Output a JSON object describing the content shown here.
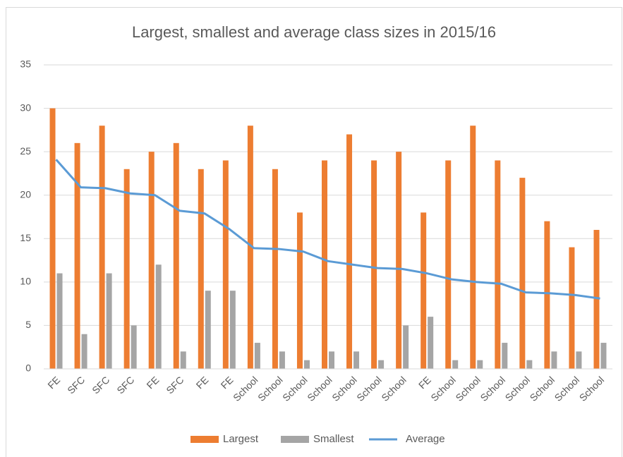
{
  "chart_data": {
    "type": "bar_line",
    "title": "Largest, smallest and average class sizes in 2015/16",
    "categories": [
      "FE",
      "SFC",
      "SFC",
      "SFC",
      "FE",
      "SFC",
      "FE",
      "FE",
      "School",
      "School",
      "School",
      "School",
      "School",
      "School",
      "School",
      "FE",
      "School",
      "School",
      "School",
      "School",
      "School",
      "School",
      "School"
    ],
    "series": [
      {
        "name": "Largest",
        "type": "bar",
        "color": "#ed7d31",
        "values": [
          30,
          26,
          28,
          23,
          25,
          26,
          23,
          24,
          28,
          23,
          18,
          24,
          27,
          24,
          25,
          18,
          24,
          28,
          24,
          22,
          17,
          14,
          16
        ]
      },
      {
        "name": "Smallest",
        "type": "bar",
        "color": "#a5a5a5",
        "values": [
          11,
          4,
          11,
          5,
          12,
          2,
          9,
          9,
          3,
          2,
          1,
          2,
          2,
          1,
          5,
          6,
          1,
          1,
          3,
          1,
          2,
          2,
          3
        ]
      },
      {
        "name": "Average",
        "type": "line",
        "color": "#5b9bd5",
        "values": [
          24.1,
          20.9,
          20.8,
          20.2,
          20.0,
          18.2,
          17.9,
          16.1,
          13.9,
          13.8,
          13.5,
          12.4,
          12.0,
          11.6,
          11.5,
          11.0,
          10.3,
          10.0,
          9.8,
          8.8,
          8.7,
          8.5,
          8.1
        ]
      }
    ],
    "ylim": [
      0,
      35
    ],
    "yticks": [
      0,
      5,
      10,
      15,
      20,
      25,
      30,
      35
    ],
    "grid": true,
    "legend": "bottom"
  }
}
